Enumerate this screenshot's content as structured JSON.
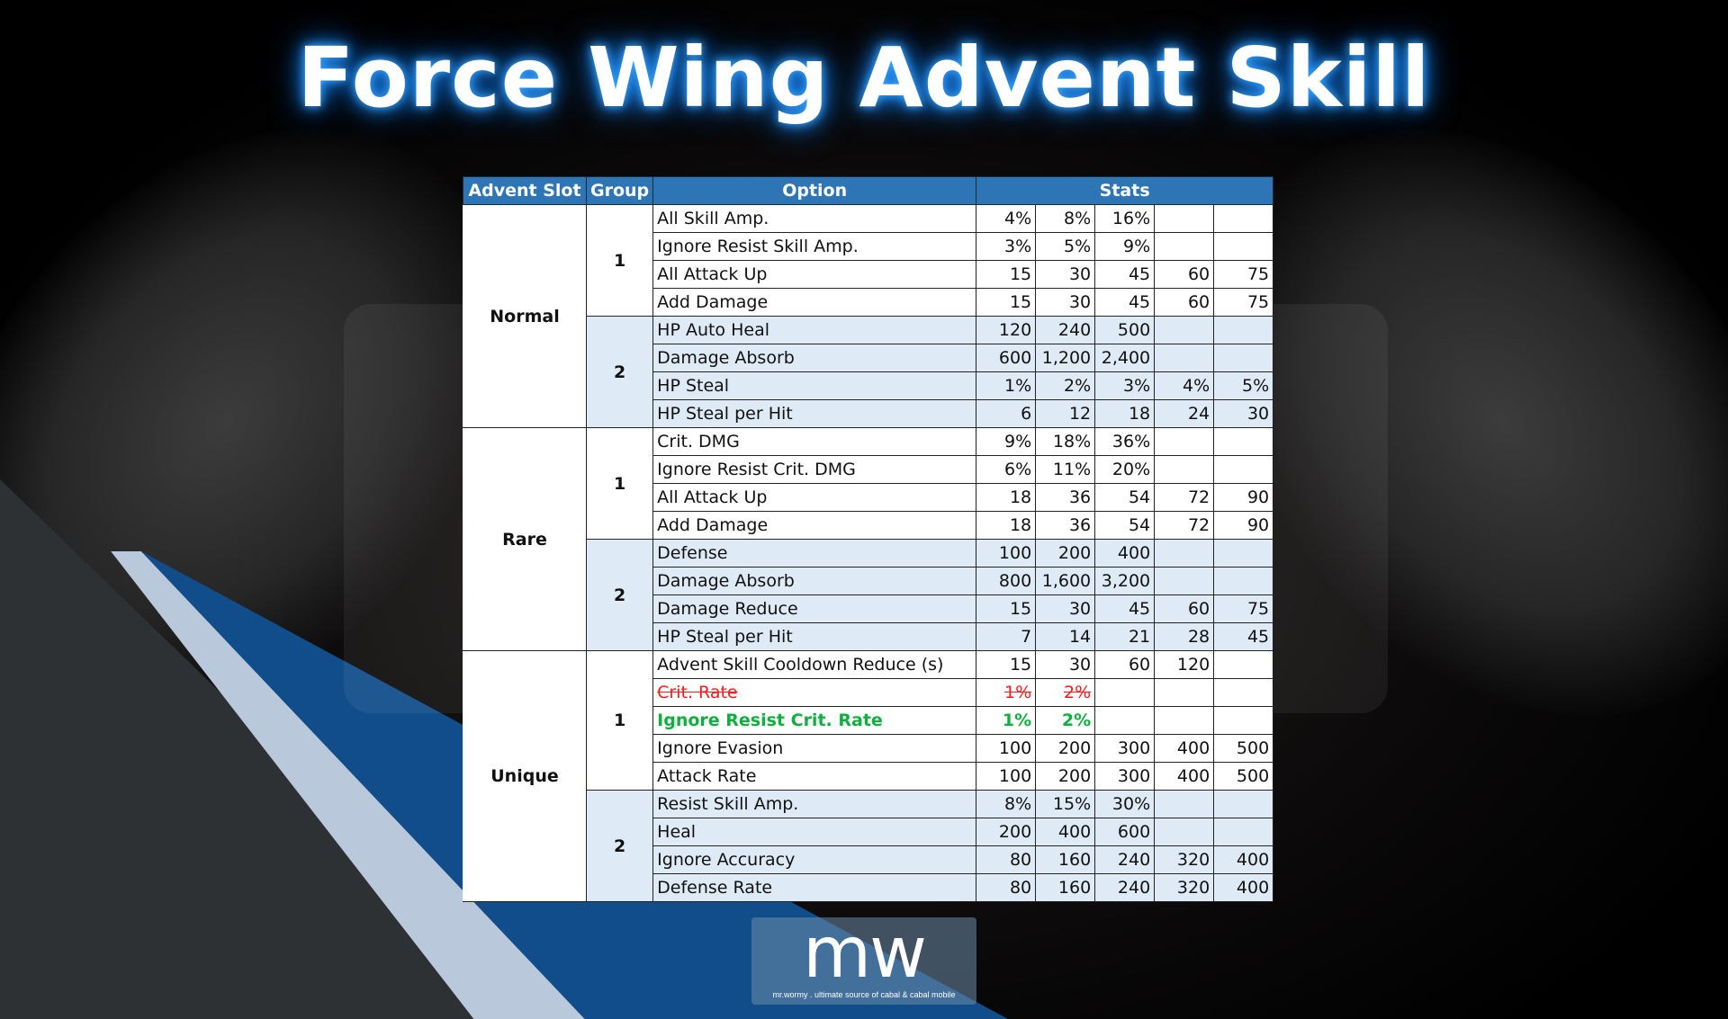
{
  "title": "Force Wing Advent Skill",
  "watermark": "mr.wormy . ultimate source of cabal & cabal mobile",
  "logo": {
    "mark": "mw",
    "tagline": "mr.wormy . ultimate source of cabal & cabal mobile"
  },
  "colors": {
    "header": "#2e75b6",
    "group2_fill": "#deeaf6",
    "removed": "#ff1a1a",
    "added": "#10b040",
    "title_glow": "#1b8cff"
  },
  "table": {
    "headers": [
      "Advent Slot",
      "Group",
      "Option",
      "Stats"
    ],
    "slots": [
      {
        "name": "Normal",
        "groups": [
          {
            "group": "1",
            "rows": [
              {
                "option": "All Skill Amp.",
                "stats": [
                  "4%",
                  "8%",
                  "16%",
                  "",
                  ""
                ]
              },
              {
                "option": "Ignore Resist Skill Amp.",
                "stats": [
                  "3%",
                  "5%",
                  "9%",
                  "",
                  ""
                ]
              },
              {
                "option": "All Attack Up",
                "stats": [
                  "15",
                  "30",
                  "45",
                  "60",
                  "75"
                ]
              },
              {
                "option": "Add Damage",
                "stats": [
                  "15",
                  "30",
                  "45",
                  "60",
                  "75"
                ]
              }
            ]
          },
          {
            "group": "2",
            "rows": [
              {
                "option": "HP Auto Heal",
                "stats": [
                  "120",
                  "240",
                  "500",
                  "",
                  ""
                ]
              },
              {
                "option": "Damage Absorb",
                "stats": [
                  "600",
                  "1,200",
                  "2,400",
                  "",
                  ""
                ]
              },
              {
                "option": "HP Steal",
                "stats": [
                  "1%",
                  "2%",
                  "3%",
                  "4%",
                  "5%"
                ]
              },
              {
                "option": "HP Steal per Hit",
                "stats": [
                  "6",
                  "12",
                  "18",
                  "24",
                  "30"
                ]
              }
            ]
          }
        ]
      },
      {
        "name": "Rare",
        "groups": [
          {
            "group": "1",
            "rows": [
              {
                "option": "Crit. DMG",
                "stats": [
                  "9%",
                  "18%",
                  "36%",
                  "",
                  ""
                ]
              },
              {
                "option": "Ignore Resist Crit. DMG",
                "stats": [
                  "6%",
                  "11%",
                  "20%",
                  "",
                  ""
                ]
              },
              {
                "option": "All Attack Up",
                "stats": [
                  "18",
                  "36",
                  "54",
                  "72",
                  "90"
                ]
              },
              {
                "option": "Add Damage",
                "stats": [
                  "18",
                  "36",
                  "54",
                  "72",
                  "90"
                ]
              }
            ]
          },
          {
            "group": "2",
            "rows": [
              {
                "option": "Defense",
                "stats": [
                  "100",
                  "200",
                  "400",
                  "",
                  ""
                ]
              },
              {
                "option": "Damage Absorb",
                "stats": [
                  "800",
                  "1,600",
                  "3,200",
                  "",
                  ""
                ]
              },
              {
                "option": "Damage Reduce",
                "stats": [
                  "15",
                  "30",
                  "45",
                  "60",
                  "75"
                ]
              },
              {
                "option": "HP Steal per Hit",
                "stats": [
                  "7",
                  "14",
                  "21",
                  "28",
                  "45"
                ]
              }
            ]
          }
        ]
      },
      {
        "name": "Unique",
        "groups": [
          {
            "group": "1",
            "rows": [
              {
                "option": "Advent Skill Cooldown Reduce (s)",
                "stats": [
                  "15",
                  "30",
                  "60",
                  "120",
                  ""
                ]
              },
              {
                "option": "Crit. Rate",
                "stats": [
                  "1%",
                  "2%",
                  "",
                  "",
                  ""
                ],
                "status": "removed"
              },
              {
                "option": "Ignore Resist Crit. Rate",
                "stats": [
                  "1%",
                  "2%",
                  "",
                  "",
                  ""
                ],
                "status": "added"
              },
              {
                "option": "Ignore Evasion",
                "stats": [
                  "100",
                  "200",
                  "300",
                  "400",
                  "500"
                ]
              },
              {
                "option": "Attack Rate",
                "stats": [
                  "100",
                  "200",
                  "300",
                  "400",
                  "500"
                ]
              }
            ]
          },
          {
            "group": "2",
            "rows": [
              {
                "option": "Resist Skill Amp.",
                "stats": [
                  "8%",
                  "15%",
                  "30%",
                  "",
                  ""
                ]
              },
              {
                "option": "Heal",
                "stats": [
                  "200",
                  "400",
                  "600",
                  "",
                  ""
                ]
              },
              {
                "option": "Ignore Accuracy",
                "stats": [
                  "80",
                  "160",
                  "240",
                  "320",
                  "400"
                ]
              },
              {
                "option": "Defense Rate",
                "stats": [
                  "80",
                  "160",
                  "240",
                  "320",
                  "400"
                ]
              }
            ]
          }
        ]
      }
    ]
  }
}
